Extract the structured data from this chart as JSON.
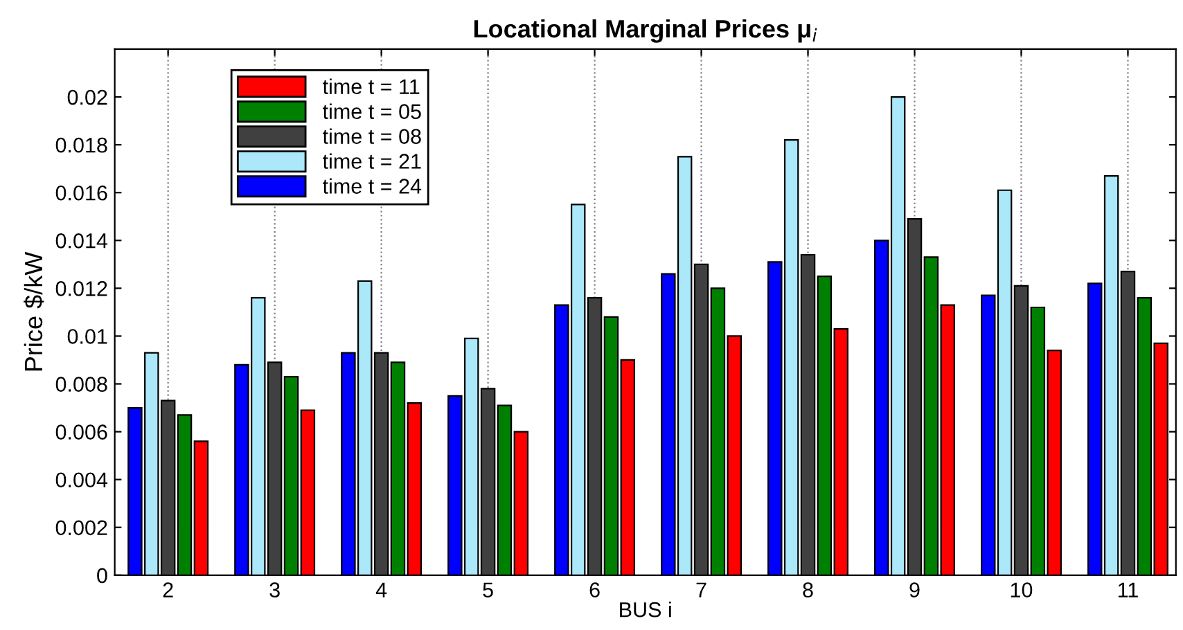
{
  "chart_data": {
    "type": "bar",
    "title": "Locational Marginal Prices μ$_{i}$",
    "xlabel": "BUS i",
    "ylabel": "Price $/kW",
    "categories": [
      "2",
      "3",
      "4",
      "5",
      "6",
      "7",
      "8",
      "9",
      "10",
      "11"
    ],
    "series": [
      {
        "name": "time t = 11",
        "color": "#ff0000",
        "values": [
          0.0056,
          0.0069,
          0.0072,
          0.006,
          0.009,
          0.01,
          0.0103,
          0.0113,
          0.0094,
          0.0097
        ]
      },
      {
        "name": "time t = 05",
        "color": "#008000",
        "values": [
          0.0067,
          0.0083,
          0.0089,
          0.0071,
          0.0108,
          0.012,
          0.0125,
          0.0133,
          0.0112,
          0.0116
        ]
      },
      {
        "name": "time t = 08",
        "color": "#404040",
        "values": [
          0.0073,
          0.0089,
          0.0093,
          0.0078,
          0.0116,
          0.013,
          0.0134,
          0.0149,
          0.0121,
          0.0127
        ]
      },
      {
        "name": "time t = 21",
        "color": "#aae8fa",
        "values": [
          0.0093,
          0.0116,
          0.0123,
          0.0099,
          0.0155,
          0.0175,
          0.0182,
          0.02,
          0.0161,
          0.0167
        ]
      },
      {
        "name": "time t = 24",
        "color": "#0000ff",
        "values": [
          0.007,
          0.0088,
          0.0093,
          0.0075,
          0.0113,
          0.0126,
          0.0131,
          0.014,
          0.0117,
          0.0122
        ]
      }
    ],
    "ylim": [
      0,
      0.022
    ],
    "yticks": [
      0,
      0.002,
      0.004,
      0.006,
      0.008,
      0.01,
      0.012,
      0.014,
      0.016,
      0.018,
      0.02
    ],
    "grid": "x",
    "legend": "top left"
  }
}
